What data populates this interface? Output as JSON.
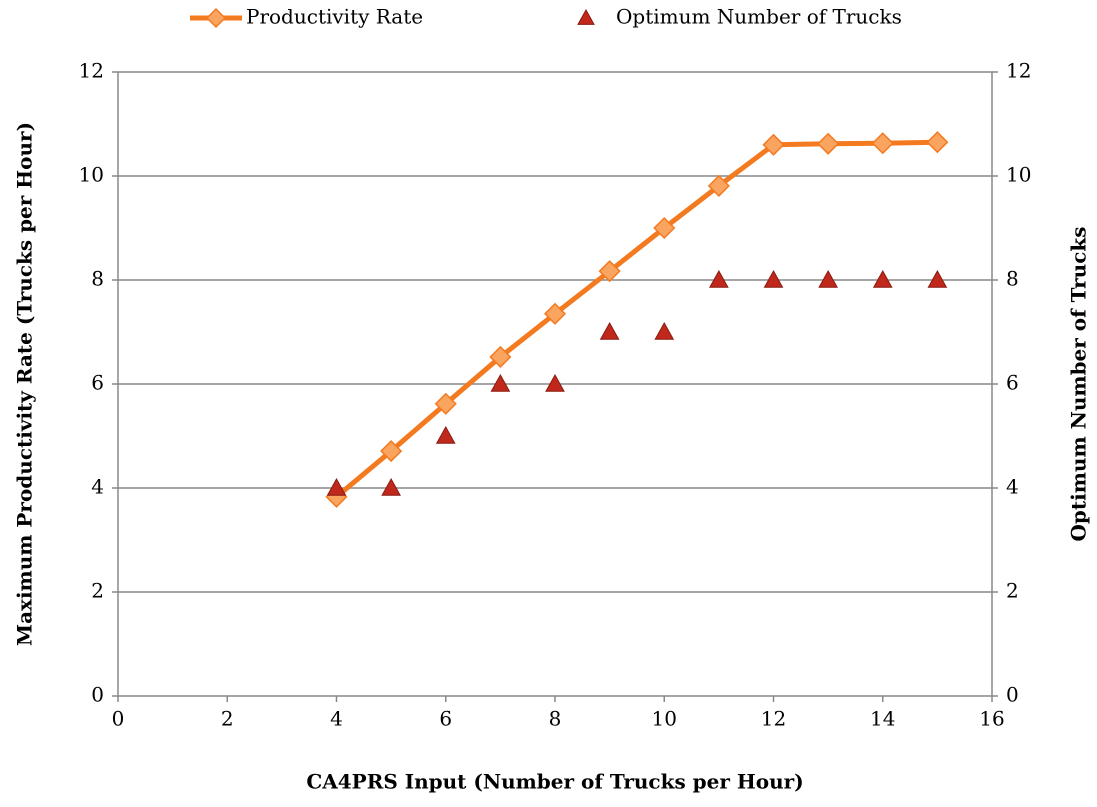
{
  "chart_data": {
    "type": "line",
    "x_label": "CA4PRS Input (Number of Trucks per Hour)",
    "y_label": "Maximum Productivity Rate (Trucks per Hour)",
    "y2_label": "Optimum Number of Trucks",
    "x": [
      4,
      5,
      6,
      7,
      8,
      9,
      10,
      11,
      12,
      13,
      14,
      15
    ],
    "series": [
      {
        "name": "Productivity Rate",
        "color": "#f47a20",
        "marker_color": "#f9a45f",
        "marker": "diamond",
        "values": [
          3.83,
          4.71,
          5.62,
          6.52,
          7.35,
          8.17,
          9.0,
          9.81,
          10.6,
          10.62,
          10.63,
          10.65
        ]
      },
      {
        "name": "Optimum Number of Trucks",
        "color": "#c0281c",
        "marker": "triangle",
        "axis": "y2",
        "values": [
          4,
          4,
          5,
          6,
          6,
          7,
          7,
          8,
          8,
          8,
          8,
          8
        ]
      }
    ],
    "xlim": [
      0,
      16
    ],
    "xticks": [
      0,
      2,
      4,
      6,
      8,
      10,
      12,
      14,
      16
    ],
    "ylim": [
      0,
      12
    ],
    "yticks": [
      0,
      2,
      4,
      6,
      8,
      10,
      12
    ],
    "y2lim": [
      0,
      12
    ],
    "y2ticks": [
      0,
      2,
      4,
      6,
      8,
      10,
      12
    ],
    "grid": true,
    "legend": "top"
  }
}
